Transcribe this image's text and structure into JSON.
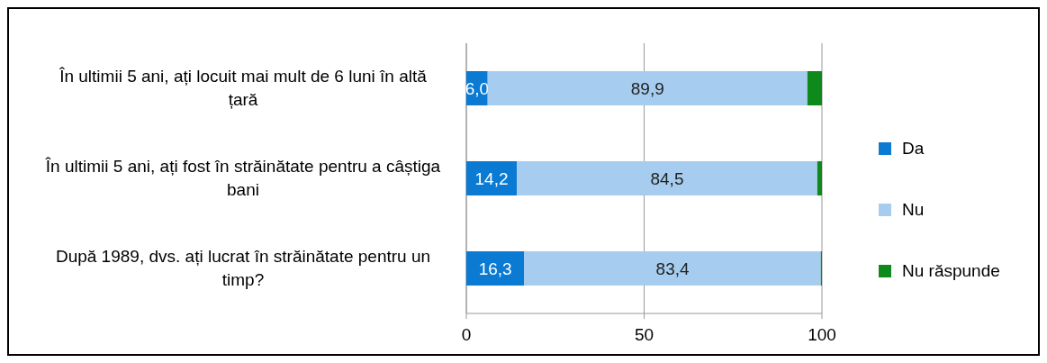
{
  "chart_data": {
    "type": "bar",
    "orientation": "horizontal",
    "stacked": true,
    "categories": [
      "În ultimii 5 ani, ați locuit mai mult de 6 luni în altă țară",
      "În ultimii 5 ani, ați fost în străinătate pentru a câștiga bani",
      "După 1989, dvs. ați lucrat în străinătate pentru un timp?"
    ],
    "series": [
      {
        "name": "Da",
        "color": "#0a7ad2",
        "values": [
          6.0,
          14.2,
          16.3
        ],
        "value_labels": [
          "6,0",
          "14,2",
          "16,3"
        ]
      },
      {
        "name": "Nu",
        "color": "#a6cdef",
        "values": [
          89.9,
          84.5,
          83.4
        ],
        "value_labels": [
          "89,9",
          "84,5",
          "83,4"
        ]
      },
      {
        "name": "Nu răspunde",
        "color": "#0e8a1c",
        "values": [
          4.1,
          1.3,
          0.3
        ],
        "value_labels": [
          null,
          null,
          null
        ]
      }
    ],
    "xlim": [
      0,
      100
    ],
    "xticks": [
      0,
      50,
      100
    ],
    "grid": "x",
    "legend": "right"
  }
}
